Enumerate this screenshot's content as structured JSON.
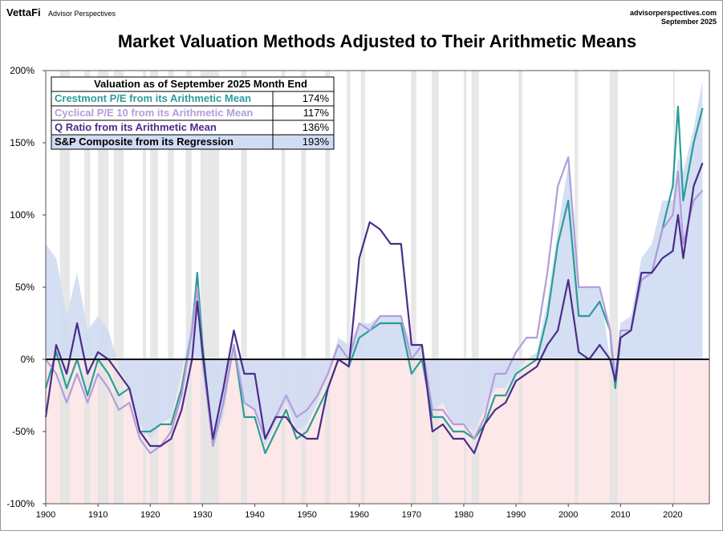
{
  "header": {
    "brand": "VettaFi",
    "name": "Advisor Perspectives",
    "site": "advisorperspectives.com",
    "date": "September 2025"
  },
  "chart_data": {
    "type": "line",
    "title": "Market Valuation Methods Adjusted to Their Arithmetic Means",
    "table_title": "Valuation as of September 2025 Month End",
    "xlim": [
      1900,
      2027
    ],
    "ylim": [
      -100,
      200
    ],
    "xticks": [
      1900,
      1910,
      1920,
      1930,
      1940,
      1950,
      1960,
      1970,
      1980,
      1990,
      2000,
      2010,
      2020
    ],
    "yticks": [
      {
        "value": -100,
        "label": "-100%"
      },
      {
        "value": -50,
        "label": "-50%"
      },
      {
        "value": 0,
        "label": "0%"
      },
      {
        "value": 50,
        "label": "50%"
      },
      {
        "value": 100,
        "label": "100%"
      },
      {
        "value": 150,
        "label": "150%"
      },
      {
        "value": 200,
        "label": "200%"
      }
    ],
    "recessions": [
      [
        1902.7,
        1904.6
      ],
      [
        1907.4,
        1908.5
      ],
      [
        1910,
        1912
      ],
      [
        1913,
        1914.9
      ],
      [
        1918.6,
        1919.2
      ],
      [
        1920,
        1921.5
      ],
      [
        1923.4,
        1924.5
      ],
      [
        1926.8,
        1927.9
      ],
      [
        1929.6,
        1933.2
      ],
      [
        1937.4,
        1938.5
      ],
      [
        1945.1,
        1945.8
      ],
      [
        1948.9,
        1949.8
      ],
      [
        1953.5,
        1954.4
      ],
      [
        1957.6,
        1958.3
      ],
      [
        1960.3,
        1961.1
      ],
      [
        1969.9,
        1970.9
      ],
      [
        1973.9,
        1975.2
      ],
      [
        1980,
        1980.5
      ],
      [
        1981.5,
        1982.9
      ],
      [
        1990.5,
        1991.2
      ],
      [
        2001.2,
        2001.9
      ],
      [
        2007.9,
        2009.5
      ],
      [
        2020.1,
        2020.4
      ]
    ],
    "x": [
      1900,
      1902,
      1904,
      1906,
      1908,
      1910,
      1912,
      1914,
      1916,
      1918,
      1920,
      1922,
      1924,
      1926,
      1928,
      1929,
      1930,
      1932,
      1934,
      1936,
      1938,
      1940,
      1942,
      1944,
      1946,
      1948,
      1950,
      1952,
      1954,
      1956,
      1958,
      1960,
      1962,
      1964,
      1966,
      1968,
      1970,
      1972,
      1974,
      1976,
      1978,
      1980,
      1982,
      1984,
      1986,
      1988,
      1990,
      1992,
      1994,
      1996,
      1998,
      2000,
      2002,
      2004,
      2006,
      2008,
      2009,
      2010,
      2012,
      2014,
      2016,
      2018,
      2020,
      2021,
      2022,
      2024,
      2025.7
    ],
    "series": [
      {
        "name": "Crestmont P/E from its Arithmetic Mean",
        "color": "#2a9d9a",
        "kind": "line",
        "current": {
          "value": 174,
          "label": "174%"
        },
        "values": [
          -20,
          5,
          -20,
          0,
          -25,
          0,
          -10,
          -25,
          -20,
          -50,
          -50,
          -45,
          -45,
          -20,
          20,
          60,
          10,
          -60,
          -30,
          10,
          -40,
          -40,
          -65,
          -50,
          -35,
          -55,
          -50,
          -35,
          -20,
          0,
          -5,
          15,
          20,
          25,
          25,
          25,
          -10,
          0,
          -40,
          -40,
          -50,
          -50,
          -55,
          -45,
          -25,
          -25,
          -10,
          -5,
          0,
          30,
          80,
          110,
          30,
          30,
          40,
          20,
          -20,
          15,
          20,
          55,
          60,
          90,
          120,
          175,
          110,
          150,
          174
        ]
      },
      {
        "name": "Cyclical P/E 10 from its Arithmetic Mean",
        "color": "#b39ddb",
        "kind": "line",
        "current": {
          "value": 117,
          "label": "117%"
        },
        "values": [
          0,
          -10,
          -30,
          -10,
          -30,
          -10,
          -20,
          -35,
          -30,
          -55,
          -65,
          -60,
          -50,
          -25,
          20,
          50,
          0,
          -60,
          -30,
          10,
          -30,
          -35,
          -55,
          -40,
          -25,
          -40,
          -35,
          -25,
          -10,
          10,
          0,
          25,
          20,
          30,
          30,
          30,
          0,
          10,
          -35,
          -35,
          -45,
          -45,
          -55,
          -40,
          -10,
          -10,
          5,
          15,
          15,
          60,
          120,
          140,
          50,
          50,
          50,
          20,
          -15,
          20,
          20,
          55,
          60,
          90,
          100,
          130,
          80,
          110,
          117
        ]
      },
      {
        "name": "Q Ratio from its Arithmetic Mean",
        "color": "#4b2c8a",
        "kind": "line",
        "current": {
          "value": 136,
          "label": "136%"
        },
        "values": [
          -40,
          10,
          -10,
          25,
          -10,
          5,
          0,
          -10,
          -20,
          -50,
          -60,
          -60,
          -55,
          -35,
          0,
          40,
          5,
          -55,
          -20,
          20,
          -10,
          -10,
          -55,
          -40,
          -40,
          -50,
          -55,
          -55,
          -20,
          0,
          -5,
          70,
          95,
          90,
          80,
          80,
          10,
          10,
          -50,
          -45,
          -55,
          -55,
          -65,
          -45,
          -35,
          -30,
          -15,
          -10,
          -5,
          10,
          20,
          55,
          5,
          0,
          10,
          0,
          -15,
          15,
          20,
          60,
          60,
          70,
          75,
          100,
          70,
          120,
          136
        ]
      },
      {
        "name": "S&P Composite from its Regression",
        "color": "#cfdcf2",
        "kind": "area",
        "current": {
          "value": 193,
          "label": "193%"
        },
        "values": [
          80,
          70,
          30,
          60,
          20,
          30,
          20,
          -5,
          -20,
          -45,
          -55,
          -45,
          -40,
          -10,
          30,
          60,
          0,
          -60,
          -40,
          10,
          -30,
          -35,
          -60,
          -45,
          -30,
          -50,
          -45,
          -30,
          -10,
          15,
          10,
          25,
          25,
          30,
          30,
          30,
          10,
          10,
          -35,
          -30,
          -45,
          -45,
          -50,
          -35,
          -20,
          -20,
          -10,
          0,
          5,
          40,
          90,
          135,
          50,
          50,
          50,
          0,
          -20,
          25,
          30,
          70,
          80,
          110,
          110,
          140,
          130,
          160,
          193
        ]
      }
    ]
  }
}
